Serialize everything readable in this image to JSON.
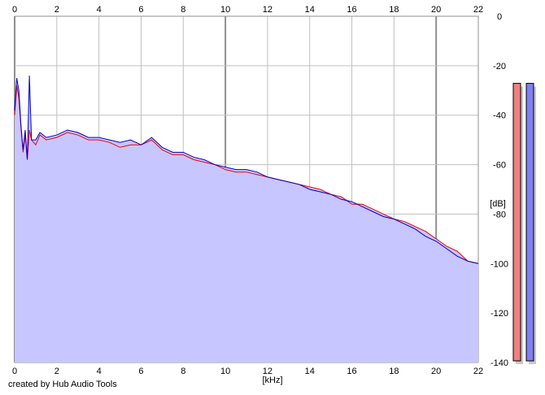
{
  "app": {
    "credit": "created by Hub Audio Tools"
  },
  "colors": {
    "background": "#ffffff",
    "plot_background": "#ffffff",
    "fill": "#c8c6ff",
    "left_channel": "#ee0000",
    "right_channel": "#0000cc",
    "grid_minor": "#c0c0c0",
    "grid_major": "#909090",
    "meter_left": "#f08080",
    "meter_right": "#8080f0",
    "meter_shadow": "#c8c8c8"
  },
  "chart_data": {
    "type": "area",
    "title": "",
    "xlabel": "[kHz]",
    "ylabel": "[dB]",
    "xlim": [
      0,
      22
    ],
    "ylim": [
      -140,
      0
    ],
    "x_ticks": [
      0,
      2,
      4,
      6,
      8,
      10,
      12,
      14,
      16,
      18,
      20,
      22
    ],
    "y_ticks": [
      0,
      -20,
      -40,
      -60,
      -80,
      -100,
      -120,
      -140
    ],
    "x_tick_labels": [
      "0",
      "2",
      "4",
      "6",
      "8",
      "10",
      "12",
      "14",
      "16",
      "18",
      "20",
      "22"
    ],
    "y_tick_labels": [
      "0",
      "-20",
      "-40",
      "-60",
      "-80",
      "-100",
      "-120",
      "-140"
    ],
    "major_x_gridlines": [
      0,
      10,
      20
    ],
    "grid": true,
    "series": [
      {
        "channel": "left",
        "color": "#ee0000",
        "x": [
          0,
          0.1,
          0.2,
          0.3,
          0.4,
          0.5,
          0.6,
          0.7,
          0.8,
          1.0,
          1.2,
          1.5,
          2.0,
          2.5,
          3.0,
          3.5,
          4.0,
          4.5,
          5.0,
          5.5,
          6.0,
          6.5,
          7.0,
          7.5,
          8.0,
          8.5,
          9.0,
          9.5,
          10.0,
          10.5,
          11.0,
          11.5,
          12.0,
          12.5,
          13.0,
          13.5,
          14.0,
          14.5,
          15.0,
          15.5,
          16.0,
          16.5,
          17.0,
          17.5,
          18.0,
          18.5,
          19.0,
          19.5,
          20.0,
          20.5,
          21.0,
          21.5,
          22.0
        ],
        "values": [
          -40,
          -28,
          -33,
          -45,
          -55,
          -48,
          -58,
          -46,
          -50,
          -52,
          -48,
          -50,
          -49,
          -47,
          -48,
          -50,
          -50,
          -51,
          -53,
          -52,
          -52,
          -50,
          -54,
          -56,
          -56,
          -58,
          -59,
          -60,
          -62,
          -63,
          -63,
          -64,
          -65,
          -66,
          -67,
          -68,
          -69,
          -70,
          -72,
          -73,
          -76,
          -76,
          -78,
          -80,
          -82,
          -83,
          -85,
          -87,
          -90,
          -93,
          -95,
          -99,
          -100
        ]
      },
      {
        "channel": "right",
        "color": "#0000cc",
        "x": [
          0,
          0.1,
          0.2,
          0.3,
          0.4,
          0.5,
          0.6,
          0.7,
          0.8,
          1.0,
          1.2,
          1.5,
          2.0,
          2.5,
          3.0,
          3.5,
          4.0,
          4.5,
          5.0,
          5.5,
          6.0,
          6.5,
          7.0,
          7.5,
          8.0,
          8.5,
          9.0,
          9.5,
          10.0,
          10.5,
          11.0,
          11.5,
          12.0,
          12.5,
          13.0,
          13.5,
          14.0,
          14.5,
          15.0,
          15.5,
          16.0,
          16.5,
          17.0,
          17.5,
          18.0,
          18.5,
          19.0,
          19.5,
          20.0,
          20.5,
          21.0,
          21.5,
          22.0
        ],
        "values": [
          -38,
          -25,
          -30,
          -44,
          -54,
          -46,
          -58,
          -24,
          -50,
          -50,
          -47,
          -49,
          -48,
          -46,
          -47,
          -49,
          -49,
          -50,
          -51,
          -50,
          -52,
          -49,
          -53,
          -55,
          -55,
          -57,
          -58,
          -60,
          -61,
          -62,
          -62,
          -63,
          -65,
          -66,
          -67,
          -68,
          -70,
          -71,
          -72,
          -74,
          -75,
          -77,
          -79,
          -81,
          -82,
          -84,
          -86,
          -89,
          -91,
          -94,
          -97,
          -99,
          -100
        ]
      }
    ]
  },
  "meters": {
    "left_level": 0.88,
    "right_level": 0.88
  }
}
